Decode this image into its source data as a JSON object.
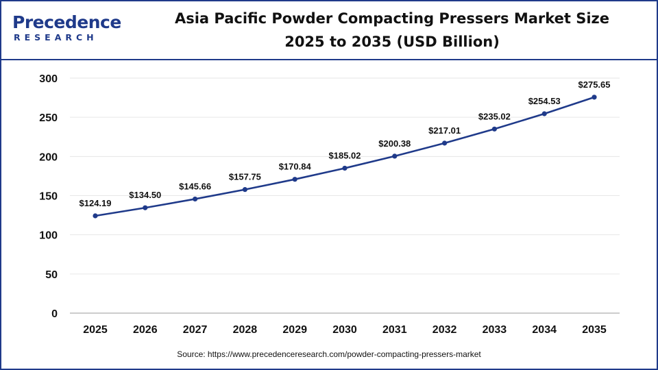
{
  "header": {
    "logo_top": "Precedence",
    "logo_bottom": "RESEARCH",
    "title_line1": "Asia Pacific Powder Compacting Pressers Market Size",
    "title_line2": "2025 to 2035 (USD Billion)"
  },
  "source": "Source: https://www.precedenceresearch.com/powder-compacting-pressers-market",
  "colors": {
    "line": "#1f3a8a",
    "point": "#1f3a8a",
    "brand": "#1f3a8a"
  },
  "chart_data": {
    "type": "line",
    "title": "Asia Pacific Powder Compacting Pressers Market Size 2025 to 2035 (USD Billion)",
    "xlabel": "",
    "ylabel": "",
    "categories": [
      "2025",
      "2026",
      "2027",
      "2028",
      "2029",
      "2030",
      "2031",
      "2032",
      "2033",
      "2034",
      "2035"
    ],
    "values": [
      124.19,
      134.5,
      145.66,
      157.75,
      170.84,
      185.02,
      200.38,
      217.01,
      235.02,
      254.53,
      275.65
    ],
    "data_labels": [
      "$124.19",
      "$134.50",
      "$145.66",
      "$157.75",
      "$170.84",
      "$185.02",
      "$200.38",
      "$217.01",
      "$235.02",
      "$254.53",
      "$275.65"
    ],
    "ylim": [
      0,
      300
    ],
    "yticks": [
      0,
      50,
      100,
      150,
      200,
      250,
      300
    ],
    "grid": "horizontal",
    "legend": "none"
  }
}
